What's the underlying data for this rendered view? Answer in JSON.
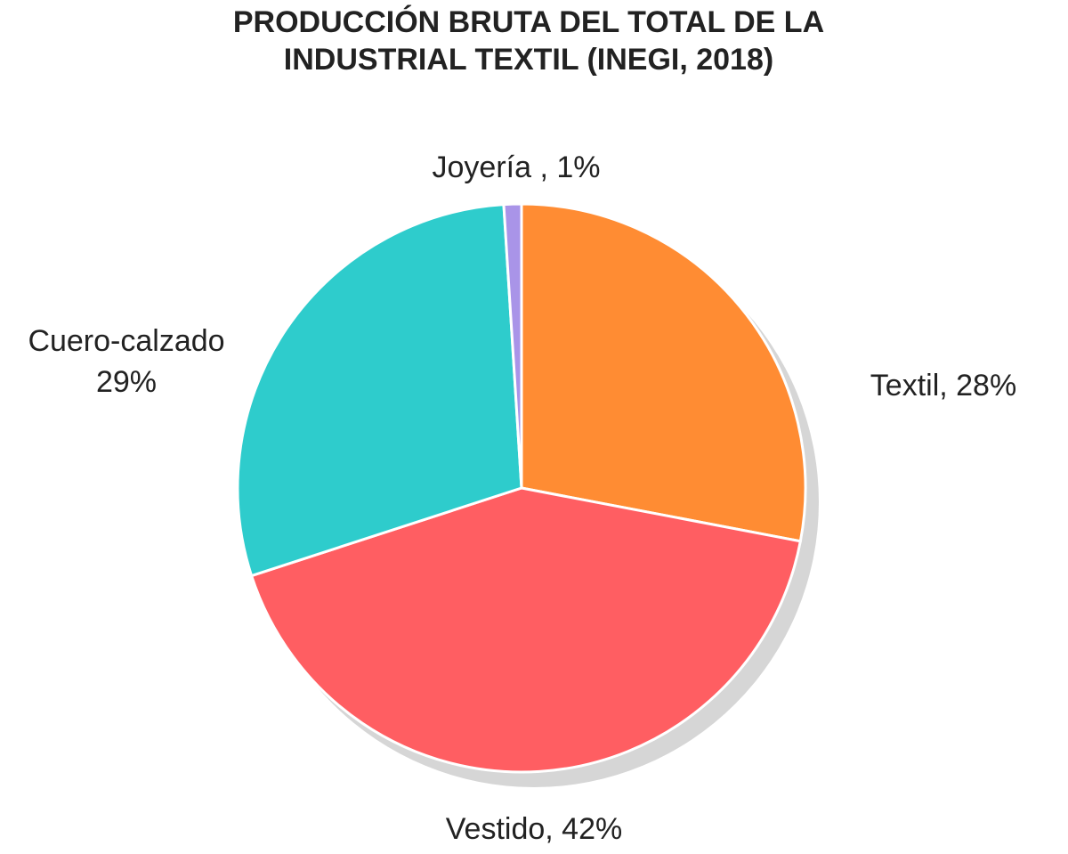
{
  "chart_data": {
    "type": "pie",
    "title": "PRODUCCIÓN BRUTA DEL TOTAL DE LA INDUSTRIAL TEXTIL (INEGI, 2018)",
    "values": [
      28,
      42,
      29,
      1
    ],
    "labels": [
      [
        "Textil, 28%"
      ],
      [
        "Vestido, 42%"
      ],
      [
        "Cuero-calzado",
        "29%"
      ],
      [
        "Joyería , 1%"
      ]
    ],
    "colors": [
      "#ff8c33",
      "#ff5e62",
      "#2ecccc",
      "#a994e8"
    ]
  }
}
